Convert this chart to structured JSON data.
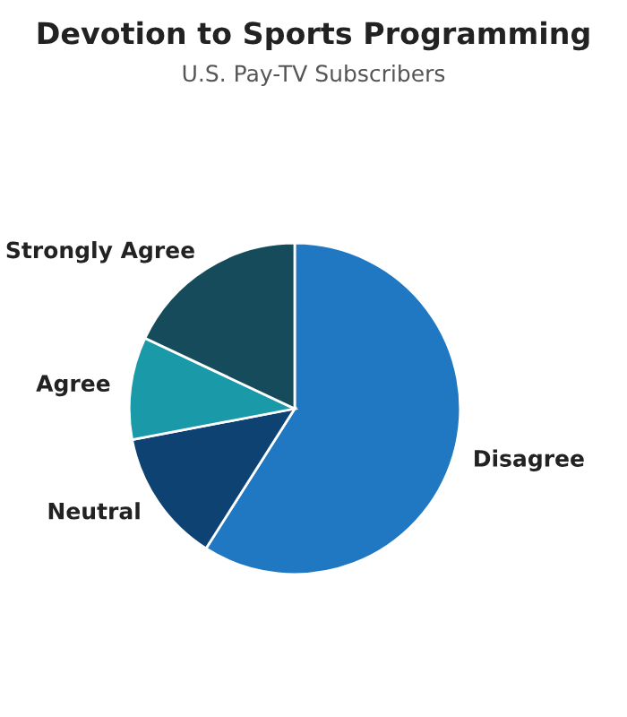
{
  "chart_data": {
    "type": "pie",
    "title": "Devotion to Sports Programming",
    "subtitle": "U.S. Pay-TV Subscribers",
    "categories": [
      "Disagree",
      "Neutral",
      "Agree",
      "Strongly Agree"
    ],
    "values": [
      59,
      13,
      10,
      18
    ],
    "colors": [
      "#1f78c1",
      "#0d4272",
      "#1a9aa8",
      "#154b5a"
    ]
  }
}
